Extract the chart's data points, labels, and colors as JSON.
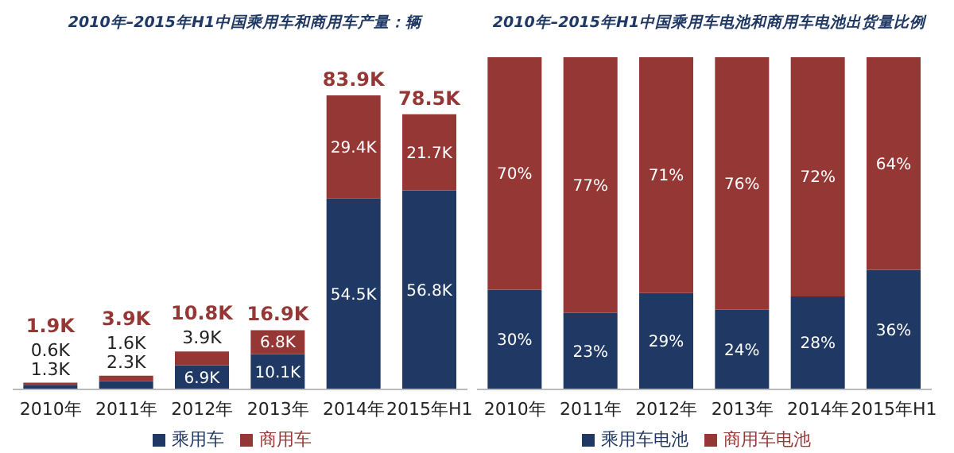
{
  "chart_data": [
    {
      "type": "bar",
      "title": "2010年–2015年H1中国乘用车和商用车产量：辆",
      "categories": [
        "2010年",
        "2011年",
        "2012年",
        "2013年",
        "2014年",
        "2015年H1"
      ],
      "stacked": true,
      "legend": "bottom",
      "series": [
        {
          "name": "乘用车",
          "color": "#1f3864",
          "values": [
            1.3,
            2.3,
            6.9,
            10.1,
            54.5,
            56.8
          ],
          "value_labels": [
            "1.3K",
            "2.3K",
            "6.9K",
            "10.1K",
            "54.5K",
            "56.8K"
          ]
        },
        {
          "name": "商用车",
          "color": "#953735",
          "values": [
            0.6,
            1.6,
            3.9,
            6.8,
            29.4,
            21.7
          ],
          "value_labels": [
            "0.6K",
            "1.6K",
            "3.9K",
            "6.8K",
            "29.4K",
            "21.7K"
          ]
        }
      ],
      "totals": [
        "1.9K",
        "3.9K",
        "10.8K",
        "16.9K",
        "83.9K",
        "78.5K"
      ]
    },
    {
      "type": "bar",
      "title": "2010年–2015年H1中国乘用车电池和商用车电池出货量比例",
      "categories": [
        "2010年",
        "2011年",
        "2012年",
        "2013年",
        "2014年",
        "2015年H1"
      ],
      "stacked": true,
      "legend": "bottom",
      "series": [
        {
          "name": "乘用车电池",
          "color": "#1f3864",
          "values": [
            30,
            23,
            29,
            24,
            28,
            36
          ],
          "value_labels": [
            "30%",
            "23%",
            "29%",
            "24%",
            "28%",
            "36%"
          ]
        },
        {
          "name": "商用车电池",
          "color": "#953735",
          "values": [
            70,
            77,
            71,
            76,
            72,
            64
          ],
          "value_labels": [
            "70%",
            "77%",
            "71%",
            "76%",
            "72%",
            "64%"
          ]
        }
      ]
    }
  ]
}
